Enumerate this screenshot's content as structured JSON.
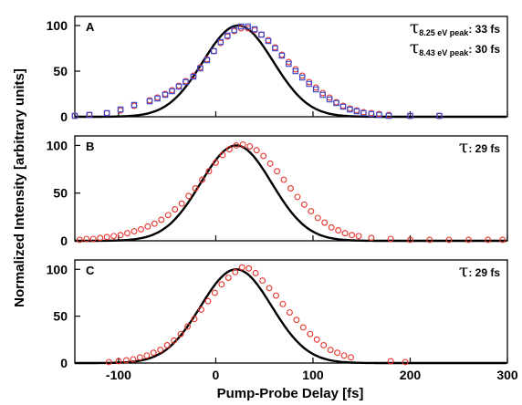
{
  "colors": {
    "fit": "#000000",
    "circle": "#e8322a",
    "square": "#3344cc",
    "frame": "#000000"
  },
  "chart_data": {
    "type": "scatter",
    "xlabel": "Pump-Probe Delay [fs]",
    "ylabel": "Normalized Intensity [arbitrary units]",
    "xlim": [
      -145,
      300
    ],
    "ylim": [
      0,
      110
    ],
    "x_ticks": [
      -100,
      0,
      100,
      200,
      300
    ],
    "y_ticks": [
      0,
      50,
      100
    ],
    "grid": false,
    "panels": [
      {
        "label": "A",
        "annotations": [
          {
            "tau": "τ",
            "sub": "8.25 eV peak",
            "text": ": 33 fs"
          },
          {
            "tau": "τ",
            "sub": "8.43 eV peak",
            "text": ": 30 fs"
          }
        ],
        "fit": {
          "center": 23,
          "fwhm": 85,
          "amplitude": 100
        },
        "series": [
          {
            "marker": "circle",
            "x": [
              -145,
              -130,
              -112,
              -98,
              -84,
              -68,
              -60,
              -52,
              -45,
              -38,
              -31,
              -23,
              -16,
              -9,
              -2,
              5,
              12,
              19,
              26,
              33,
              40,
              47,
              54,
              61,
              68,
              75,
              82,
              89,
              96,
              103,
              110,
              117,
              124,
              131,
              138,
              145,
              152,
              160,
              168,
              178,
              200,
              230
            ],
            "y": [
              1,
              2,
              4,
              7,
              12,
              18,
              21,
              25,
              29,
              34,
              39,
              45,
              54,
              63,
              72,
              81,
              88,
              94,
              97,
              97,
              95,
              90,
              84,
              76,
              68,
              60,
              52,
              45,
              38,
              32,
              26,
              21,
              16,
              12,
              9,
              7,
              5,
              4,
              3,
              2,
              1,
              1
            ]
          },
          {
            "marker": "square",
            "x": [
              -145,
              -130,
              -112,
              -98,
              -84,
              -68,
              -60,
              -52,
              -45,
              -38,
              -31,
              -23,
              -16,
              -9,
              -2,
              5,
              12,
              19,
              26,
              33,
              40,
              47,
              54,
              61,
              68,
              75,
              82,
              89,
              96,
              103,
              110,
              117,
              124,
              131,
              138,
              145,
              152,
              160,
              168,
              178,
              200,
              230
            ],
            "y": [
              1,
              2,
              4,
              8,
              13,
              17,
              20,
              24,
              28,
              33,
              38,
              44,
              53,
              62,
              72,
              82,
              89,
              95,
              99,
              99,
              96,
              90,
              83,
              75,
              67,
              58,
              50,
              43,
              36,
              30,
              24,
              19,
              15,
              11,
              8,
              6,
              4,
              3,
              2,
              1,
              1,
              1
            ]
          }
        ]
      },
      {
        "label": "B",
        "annotations": [
          {
            "tau": "τ",
            "sub": "",
            "text": ": 29 fs"
          }
        ],
        "fit": {
          "center": 21,
          "fwhm": 86,
          "amplitude": 100
        },
        "series": [
          {
            "marker": "circle",
            "x": [
              -140,
              -133,
              -126,
              -119,
              -112,
              -105,
              -98,
              -91,
              -84,
              -77,
              -70,
              -63,
              -56,
              -49,
              -42,
              -35,
              -28,
              -21,
              -14,
              -7,
              0,
              7,
              14,
              21,
              28,
              35,
              42,
              49,
              56,
              63,
              70,
              77,
              84,
              91,
              98,
              105,
              112,
              119,
              126,
              133,
              140,
              147,
              160,
              180,
              200,
              220,
              240,
              260,
              280,
              295
            ],
            "y": [
              1,
              2,
              2,
              3,
              4,
              5,
              6,
              8,
              10,
              12,
              15,
              18,
              22,
              27,
              33,
              39,
              47,
              55,
              64,
              73,
              82,
              90,
              96,
              100,
              101,
              99,
              95,
              89,
              81,
              73,
              64,
              55,
              46,
              38,
              31,
              24,
              19,
              14,
              11,
              8,
              6,
              5,
              3,
              2,
              1,
              1,
              1,
              1,
              1,
              1
            ]
          }
        ]
      },
      {
        "label": "C",
        "annotations": [
          {
            "tau": "τ",
            "sub": "",
            "text": ": 29 fs"
          }
        ],
        "fit": {
          "center": 21,
          "fwhm": 86,
          "amplitude": 100
        },
        "series": [
          {
            "marker": "circle",
            "x": [
              -110,
              -100,
              -92,
              -85,
              -78,
              -71,
              -64,
              -57,
              -50,
              -43,
              -36,
              -29,
              -22,
              -15,
              -8,
              -1,
              6,
              13,
              20,
              27,
              34,
              41,
              48,
              55,
              62,
              69,
              76,
              83,
              90,
              97,
              104,
              111,
              118,
              125,
              132,
              139,
              180,
              195
            ],
            "y": [
              1,
              2,
              3,
              4,
              6,
              8,
              11,
              14,
              19,
              24,
              31,
              39,
              47,
              57,
              66,
              75,
              84,
              91,
              97,
              102,
              101,
              96,
              88,
              80,
              72,
              63,
              54,
              46,
              38,
              31,
              25,
              19,
              14,
              11,
              8,
              6,
              2,
              1
            ]
          }
        ]
      }
    ]
  }
}
